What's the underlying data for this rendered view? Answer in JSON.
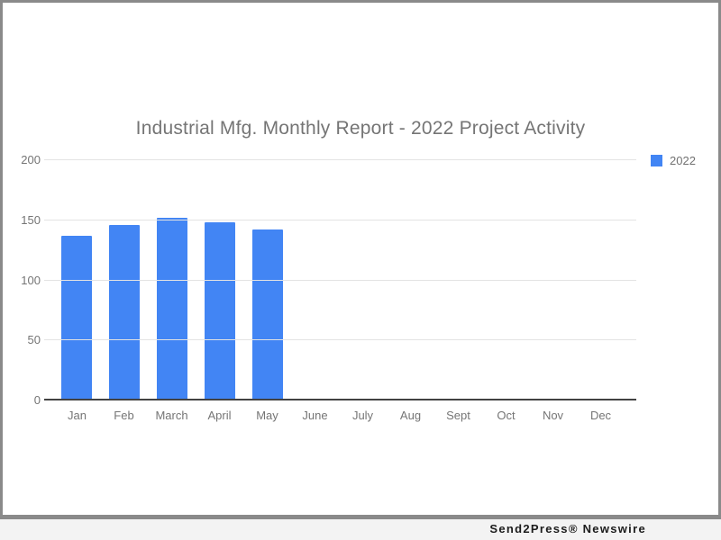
{
  "chart_data": {
    "type": "bar",
    "title": "Industrial Mfg. Monthly Report - 2022 Project Activity",
    "categories": [
      "Jan",
      "Feb",
      "March",
      "April",
      "May",
      "June",
      "July",
      "Aug",
      "Sept",
      "Oct",
      "Nov",
      "Dec"
    ],
    "series": [
      {
        "name": "2022",
        "values": [
          137,
          146,
          152,
          148,
          142,
          null,
          null,
          null,
          null,
          null,
          null,
          null
        ]
      }
    ],
    "yticks": [
      0,
      50,
      100,
      150,
      200
    ],
    "ylim": [
      0,
      200
    ],
    "xlabel": "",
    "ylabel": "",
    "grid": true,
    "legend_position": "right",
    "bar_color": "#4285f4"
  },
  "footer": {
    "brand": "Send2Press® Newswire"
  }
}
